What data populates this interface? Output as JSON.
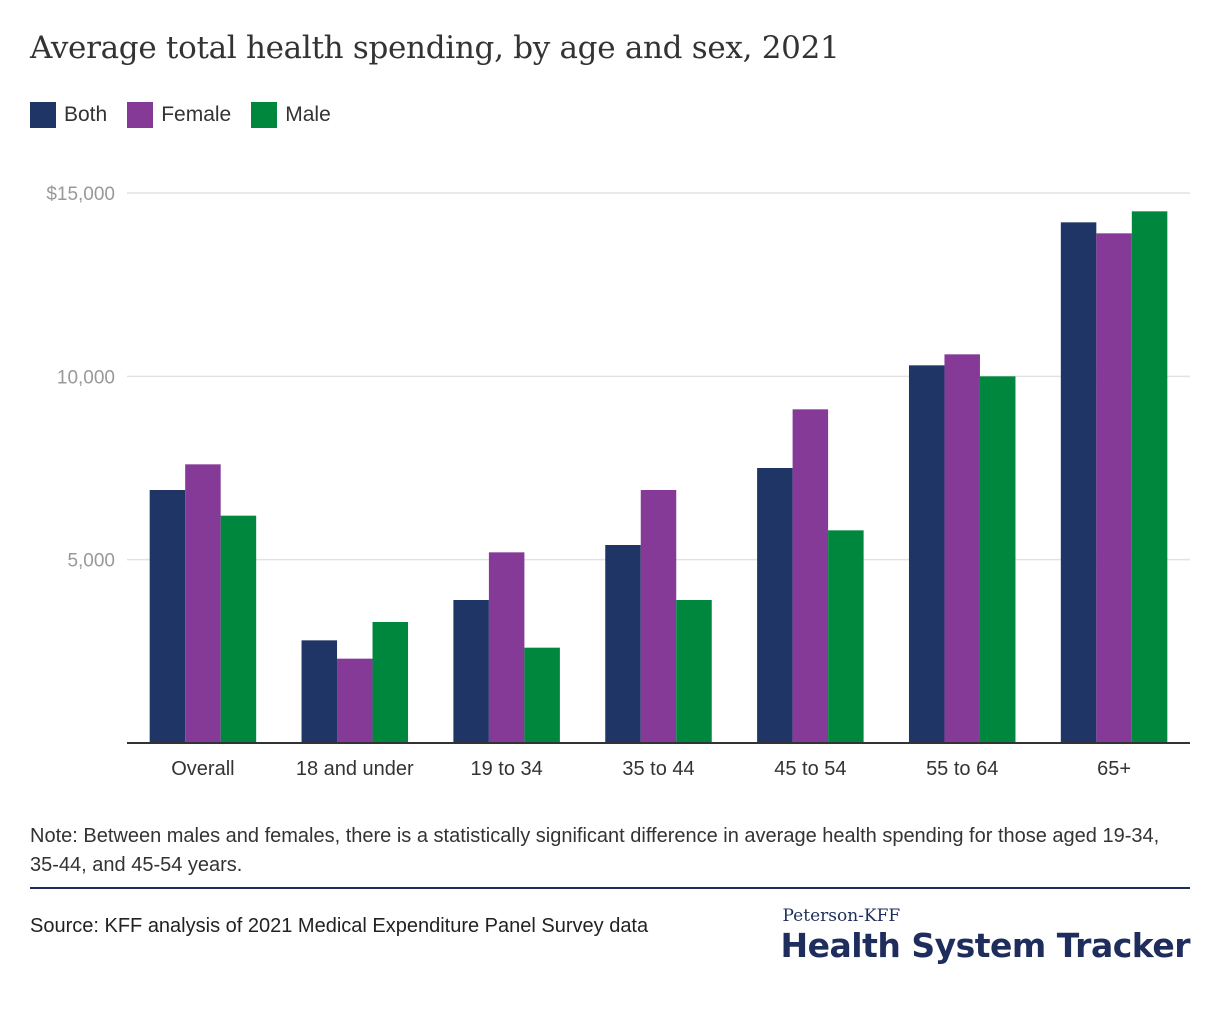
{
  "title": "Average total health spending, by age and sex, 2021",
  "colors": {
    "both": "#1f3566",
    "female": "#843a96",
    "male": "#00873e",
    "grid": "#e2e2e2",
    "axis": "#333333"
  },
  "chart_data": {
    "type": "bar",
    "categories": [
      "Overall",
      "18 and under",
      "19 to 34",
      "35 to 44",
      "45 to 54",
      "55 to 64",
      "65+"
    ],
    "series": [
      {
        "name": "Both",
        "color": "#1f3566",
        "values": [
          6900,
          2800,
          3900,
          5400,
          7500,
          10300,
          14200
        ]
      },
      {
        "name": "Female",
        "color": "#843a96",
        "values": [
          7600,
          2300,
          5200,
          6900,
          9100,
          10600,
          13900
        ]
      },
      {
        "name": "Male",
        "color": "#00873e",
        "values": [
          6200,
          3300,
          2600,
          3900,
          5800,
          10000,
          14500
        ]
      }
    ],
    "yticks": [
      5000,
      10000,
      15000
    ],
    "ytick_labels": [
      "5,000",
      "10,000",
      "$15,000"
    ],
    "ylim": [
      0,
      15000
    ],
    "grid": true,
    "legend": "top-left"
  },
  "note": "Note: Between males and females, there is a statistically significant difference in average health spending for those aged 19-34, 35-44, and 45-54 years.",
  "source": "Source: KFF analysis of 2021 Medical Expenditure Panel Survey data",
  "brand": {
    "small": "Peterson-KFF",
    "large": "Health System Tracker"
  }
}
